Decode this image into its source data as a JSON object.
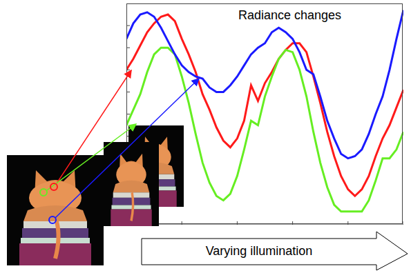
{
  "chart_data": {
    "type": "line",
    "annotations": [
      "Radiance changes"
    ],
    "xlabel": "Varying illumination",
    "x": [
      0,
      1,
      2,
      3,
      4,
      5,
      6,
      7,
      8,
      9,
      10,
      11,
      12,
      13,
      14,
      15,
      16,
      17,
      18,
      19,
      20,
      21,
      22,
      23,
      24,
      25,
      26,
      27,
      28,
      29,
      30,
      31,
      32,
      33,
      34,
      35,
      36,
      37,
      38,
      39,
      40
    ],
    "xlim": [
      0,
      40
    ],
    "xticks": [
      0,
      8,
      16,
      24,
      32,
      40
    ],
    "ylim": [
      0,
      10
    ],
    "yticks": [
      0,
      1,
      2,
      3,
      4,
      5,
      6,
      7,
      8,
      9,
      10
    ],
    "tick_labels": false,
    "grid": false,
    "series": [
      {
        "color": "#ff1a1a",
        "values": [
          7.0,
          7.5,
          8.1,
          8.7,
          9.1,
          9.4,
          9.5,
          9.2,
          8.4,
          7.7,
          6.9,
          5.9,
          5.2,
          4.4,
          3.8,
          3.5,
          3.9,
          4.7,
          6.3,
          5.6,
          6.4,
          6.9,
          7.5,
          7.9,
          8.2,
          8.2,
          7.8,
          6.7,
          5.5,
          4.2,
          3.1,
          2.2,
          1.6,
          1.3,
          1.6,
          2.2,
          3.1,
          3.9,
          4.5,
          5.3,
          6.1
        ]
      },
      {
        "color": "#66ee22",
        "values": [
          4.5,
          5.2,
          5.9,
          6.9,
          7.7,
          8.0,
          8.0,
          7.7,
          6.7,
          5.5,
          4.1,
          2.8,
          1.9,
          1.3,
          1.1,
          1.4,
          2.2,
          3.4,
          4.7,
          4.5,
          5.8,
          6.7,
          7.5,
          7.9,
          7.8,
          7.0,
          5.8,
          4.2,
          2.8,
          1.7,
          0.9,
          0.6,
          0.6,
          0.6,
          0.6,
          1.1,
          2.0,
          3.0,
          3.0,
          3.4,
          4.2
        ]
      },
      {
        "color": "#1a1aff",
        "values": [
          8.4,
          9.1,
          9.5,
          9.6,
          9.4,
          8.9,
          8.3,
          7.7,
          7.2,
          6.9,
          6.7,
          6.6,
          6.2,
          6.0,
          6.0,
          6.3,
          6.7,
          7.2,
          7.7,
          8.0,
          8.2,
          8.7,
          8.9,
          8.7,
          8.4,
          7.8,
          7.0,
          6.8,
          5.8,
          4.7,
          3.9,
          3.2,
          3.0,
          3.1,
          3.4,
          4.1,
          5.0,
          5.8,
          7.0,
          8.4,
          9.7
        ]
      }
    ]
  }
}
